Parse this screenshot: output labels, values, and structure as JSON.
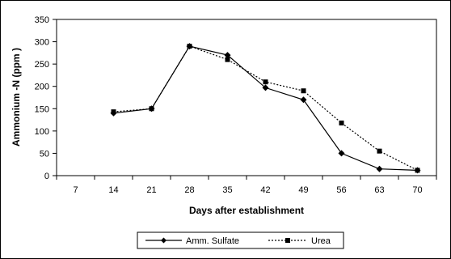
{
  "chart_data": {
    "type": "line",
    "title": "",
    "xlabel": "Days after establishment",
    "ylabel": "Ammonium -N (ppm )",
    "categories": [
      "7",
      "14",
      "21",
      "28",
      "35",
      "42",
      "49",
      "56",
      "63",
      "70"
    ],
    "ylim": [
      0,
      350
    ],
    "yticks": [
      "0",
      "50",
      "100",
      "150",
      "200",
      "250",
      "300",
      "350"
    ],
    "grid": false,
    "legend_position": "bottom",
    "series": [
      {
        "name": "Amm. Sulfate",
        "style": "solid",
        "marker": "diamond",
        "color": "#000000",
        "values": [
          null,
          140,
          150,
          290,
          270,
          197,
          170,
          50,
          15,
          12
        ]
      },
      {
        "name": "Urea",
        "style": "dotted",
        "marker": "square",
        "color": "#000000",
        "values": [
          null,
          143,
          150,
          290,
          260,
          210,
          190,
          118,
          55,
          12
        ]
      }
    ]
  }
}
